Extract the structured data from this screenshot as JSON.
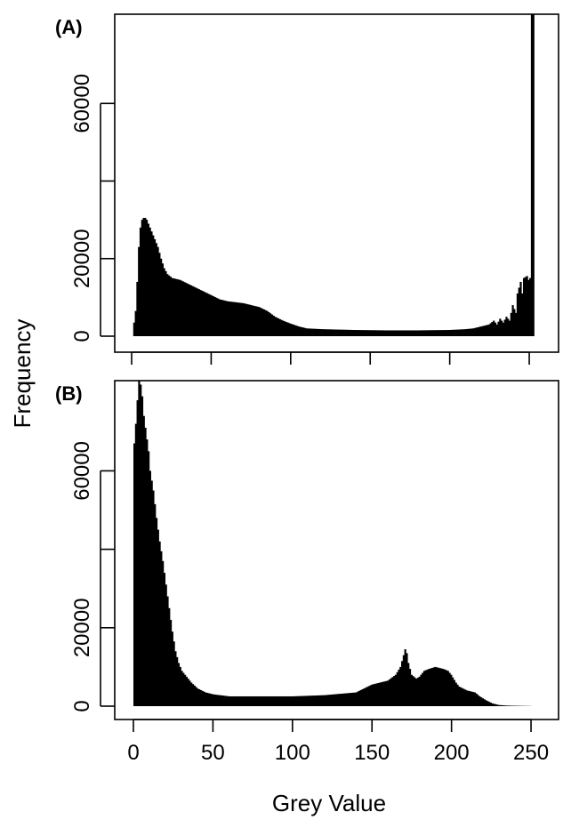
{
  "chart_data": [
    {
      "type": "bar",
      "panel_label": "(A)",
      "xlim": [
        0,
        255
      ],
      "ylim": [
        0,
        83000
      ],
      "yticks": [
        0,
        20000,
        40000,
        60000
      ],
      "ytick_labels": [
        "0",
        "20000",
        "",
        "60000"
      ],
      "xticks": [
        0,
        50,
        100,
        150,
        200,
        250
      ],
      "xtick_labels": [],
      "grid": false,
      "profile_points": [
        [
          0,
          0
        ],
        [
          1,
          3500
        ],
        [
          2,
          6500
        ],
        [
          3,
          14000
        ],
        [
          4,
          23000
        ],
        [
          5,
          28000
        ],
        [
          6,
          30000
        ],
        [
          7,
          30500
        ],
        [
          8,
          30500
        ],
        [
          9,
          30000
        ],
        [
          10,
          29000
        ],
        [
          12,
          27000
        ],
        [
          14,
          25000
        ],
        [
          16,
          23000
        ],
        [
          18,
          20000
        ],
        [
          20,
          17500
        ],
        [
          22,
          16000
        ],
        [
          25,
          15000
        ],
        [
          30,
          14500
        ],
        [
          35,
          13500
        ],
        [
          40,
          12500
        ],
        [
          45,
          11500
        ],
        [
          50,
          10500
        ],
        [
          55,
          9500
        ],
        [
          60,
          9000
        ],
        [
          70,
          8500
        ],
        [
          75,
          8000
        ],
        [
          80,
          7500
        ],
        [
          85,
          6500
        ],
        [
          90,
          5000
        ],
        [
          95,
          4000
        ],
        [
          100,
          3200
        ],
        [
          105,
          2500
        ],
        [
          110,
          2000
        ],
        [
          120,
          1800
        ],
        [
          140,
          1600
        ],
        [
          160,
          1500
        ],
        [
          180,
          1500
        ],
        [
          200,
          1600
        ],
        [
          210,
          1800
        ],
        [
          215,
          2000
        ],
        [
          220,
          2500
        ],
        [
          225,
          3000
        ],
        [
          228,
          4000
        ],
        [
          230,
          3000
        ],
        [
          232,
          4500
        ],
        [
          234,
          3500
        ],
        [
          236,
          5000
        ],
        [
          238,
          4000
        ],
        [
          240,
          8000
        ],
        [
          242,
          6000
        ],
        [
          243,
          11000
        ],
        [
          245,
          14000
        ],
        [
          246,
          11000
        ],
        [
          247,
          15000
        ],
        [
          249,
          15500
        ],
        [
          250,
          14500
        ],
        [
          251,
          15000
        ],
        [
          252,
          83000
        ],
        [
          253,
          83000
        ],
        [
          254,
          0
        ],
        [
          255,
          0
        ]
      ]
    },
    {
      "type": "bar",
      "panel_label": "(B)",
      "xlim": [
        0,
        255
      ],
      "ylim": [
        0,
        83000
      ],
      "yticks": [
        0,
        20000,
        40000,
        60000
      ],
      "ytick_labels": [
        "0",
        "20000",
        "",
        "60000"
      ],
      "xticks": [
        0,
        50,
        100,
        150,
        200,
        250
      ],
      "xtick_labels": [
        "0",
        "50",
        "100",
        "150",
        "200",
        "250"
      ],
      "xlabel": "Grey Value",
      "grid": false,
      "profile_points": [
        [
          0,
          67000
        ],
        [
          1,
          72000
        ],
        [
          2,
          78000
        ],
        [
          3,
          83000
        ],
        [
          4,
          82000
        ],
        [
          5,
          79000
        ],
        [
          6,
          74000
        ],
        [
          7,
          71000
        ],
        [
          8,
          68000
        ],
        [
          9,
          65000
        ],
        [
          10,
          60000
        ],
        [
          12,
          55000
        ],
        [
          14,
          48000
        ],
        [
          16,
          42000
        ],
        [
          18,
          37000
        ],
        [
          20,
          31000
        ],
        [
          22,
          25000
        ],
        [
          24,
          19000
        ],
        [
          26,
          14000
        ],
        [
          28,
          11000
        ],
        [
          30,
          9000
        ],
        [
          33,
          7500
        ],
        [
          36,
          6000
        ],
        [
          40,
          4500
        ],
        [
          45,
          3500
        ],
        [
          50,
          3000
        ],
        [
          60,
          2500
        ],
        [
          80,
          2500
        ],
        [
          100,
          2500
        ],
        [
          120,
          2800
        ],
        [
          140,
          3500
        ],
        [
          145,
          4500
        ],
        [
          150,
          5500
        ],
        [
          155,
          6000
        ],
        [
          160,
          6500
        ],
        [
          165,
          8000
        ],
        [
          168,
          10000
        ],
        [
          170,
          13000
        ],
        [
          171,
          14500
        ],
        [
          172,
          13500
        ],
        [
          173,
          11000
        ],
        [
          175,
          8000
        ],
        [
          178,
          7000
        ],
        [
          180,
          7500
        ],
        [
          183,
          9000
        ],
        [
          186,
          9500
        ],
        [
          190,
          10000
        ],
        [
          195,
          9500
        ],
        [
          198,
          9000
        ],
        [
          200,
          8000
        ],
        [
          203,
          6000
        ],
        [
          205,
          5000
        ],
        [
          210,
          4000
        ],
        [
          215,
          3500
        ],
        [
          218,
          2500
        ],
        [
          222,
          1500
        ],
        [
          226,
          700
        ],
        [
          230,
          300
        ],
        [
          235,
          150
        ],
        [
          240,
          100
        ],
        [
          245,
          60
        ],
        [
          250,
          30
        ],
        [
          251,
          0
        ],
        [
          255,
          0
        ]
      ]
    }
  ],
  "shared": {
    "ylabel": "Frequency"
  }
}
